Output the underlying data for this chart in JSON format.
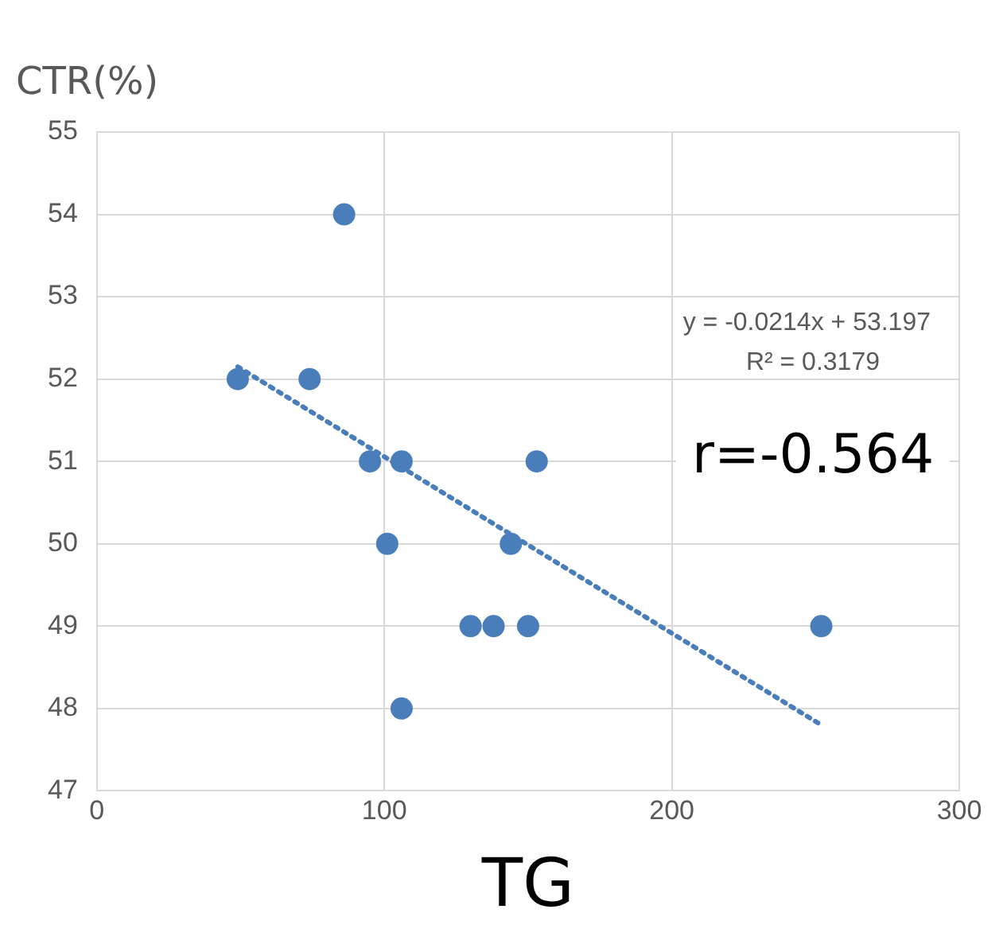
{
  "chart_data": {
    "type": "scatter",
    "xlabel": "TG",
    "ylabel": "CTR(%)",
    "xlim": [
      0,
      300
    ],
    "xticks": [
      0,
      100,
      200,
      300
    ],
    "ylim": [
      47,
      55
    ],
    "yticks": [
      47,
      48,
      49,
      50,
      51,
      52,
      53,
      54,
      55
    ],
    "grid": true,
    "marker": "circle",
    "series": [
      {
        "color": "#4a7ebb",
        "x": [
          49,
          86,
          74,
          95,
          106,
          101,
          106,
          130,
          138,
          150,
          144,
          153,
          252
        ],
        "values": [
          52,
          54,
          52,
          51,
          51,
          50,
          48,
          49,
          49,
          49,
          50,
          51,
          49
        ]
      },
      {
        "type": "line",
        "color": "#4a7ebb",
        "line_style": "dotted",
        "marker": "none",
        "x": [
          49,
          252
        ],
        "values": [
          52.15,
          47.8
        ]
      }
    ],
    "annotations": [
      "y = -0.0214x + 53.197",
      "R² = 0.3179",
      "r=-0.564"
    ]
  }
}
